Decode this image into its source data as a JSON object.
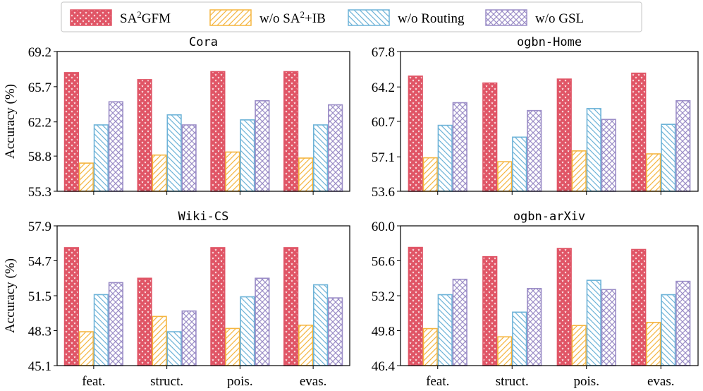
{
  "legend": [
    {
      "label": "SA²GFM",
      "color": "#e05566",
      "pattern": "stars"
    },
    {
      "label": "w/o SA²+IB",
      "color": "#f5b53f",
      "pattern": "slash"
    },
    {
      "label": "w/o Routing",
      "color": "#6db3d8",
      "pattern": "backslash"
    },
    {
      "label": "w/o GSL",
      "color": "#9b8dc7",
      "pattern": "cross"
    }
  ],
  "shared_ylabel": "Accuracy (%)",
  "chart_data": [
    {
      "type": "bar",
      "title": "Cora",
      "categories": [
        "feat.",
        "struct.",
        "pois.",
        "evas."
      ],
      "ylabel": "Accuracy (%)",
      "ylim": [
        55.3,
        69.2
      ],
      "yticks": [
        "55.3",
        "58.8",
        "62.2",
        "65.7",
        "69.2"
      ],
      "series": [
        {
          "name": "SA²GFM",
          "values": [
            67.1,
            66.4,
            67.2,
            67.2
          ]
        },
        {
          "name": "w/o SA²+IB",
          "values": [
            58.1,
            58.9,
            59.2,
            58.6
          ]
        },
        {
          "name": "w/o Routing",
          "values": [
            61.9,
            62.9,
            62.4,
            61.9
          ]
        },
        {
          "name": "w/o GSL",
          "values": [
            64.2,
            61.9,
            64.3,
            63.9
          ]
        }
      ]
    },
    {
      "type": "bar",
      "title": "ogbn-Home",
      "categories": [
        "feat.",
        "struct.",
        "pois.",
        "evas."
      ],
      "ylabel": "",
      "ylim": [
        53.6,
        67.8
      ],
      "yticks": [
        "53.6",
        "57.1",
        "60.7",
        "64.2",
        "67.8"
      ],
      "series": [
        {
          "name": "SA²GFM",
          "values": [
            65.3,
            64.6,
            65.0,
            65.6
          ]
        },
        {
          "name": "w/o SA²+IB",
          "values": [
            57.0,
            56.6,
            57.7,
            57.4
          ]
        },
        {
          "name": "w/o Routing",
          "values": [
            60.3,
            59.1,
            62.0,
            60.4
          ]
        },
        {
          "name": "w/o GSL",
          "values": [
            62.6,
            61.8,
            60.9,
            62.8
          ]
        }
      ]
    },
    {
      "type": "bar",
      "title": "Wiki-CS",
      "categories": [
        "feat.",
        "struct.",
        "pois.",
        "evas."
      ],
      "ylabel": "Accuracy (%)",
      "ylim": [
        45.1,
        57.9
      ],
      "yticks": [
        "45.1",
        "48.3",
        "51.5",
        "54.7",
        "57.9"
      ],
      "series": [
        {
          "name": "SA²GFM",
          "values": [
            55.9,
            53.1,
            55.9,
            55.9
          ]
        },
        {
          "name": "w/o SA²+IB",
          "values": [
            48.2,
            49.6,
            48.5,
            48.8
          ]
        },
        {
          "name": "w/o Routing",
          "values": [
            51.6,
            48.2,
            51.4,
            52.5
          ]
        },
        {
          "name": "w/o GSL",
          "values": [
            52.7,
            50.1,
            53.1,
            51.3
          ]
        }
      ]
    },
    {
      "type": "bar",
      "title": "ogbn-arXiv",
      "categories": [
        "feat.",
        "struct.",
        "pois.",
        "evas."
      ],
      "ylabel": "",
      "ylim": [
        46.4,
        60.0
      ],
      "yticks": [
        "46.4",
        "49.8",
        "53.2",
        "56.6",
        "60.0"
      ],
      "series": [
        {
          "name": "SA²GFM",
          "values": [
            57.9,
            57.0,
            57.8,
            57.7
          ]
        },
        {
          "name": "w/o SA²+IB",
          "values": [
            50.0,
            49.2,
            50.3,
            50.6
          ]
        },
        {
          "name": "w/o Routing",
          "values": [
            53.3,
            51.6,
            54.7,
            53.3
          ]
        },
        {
          "name": "w/o GSL",
          "values": [
            54.8,
            53.9,
            53.8,
            54.6
          ]
        }
      ]
    }
  ]
}
